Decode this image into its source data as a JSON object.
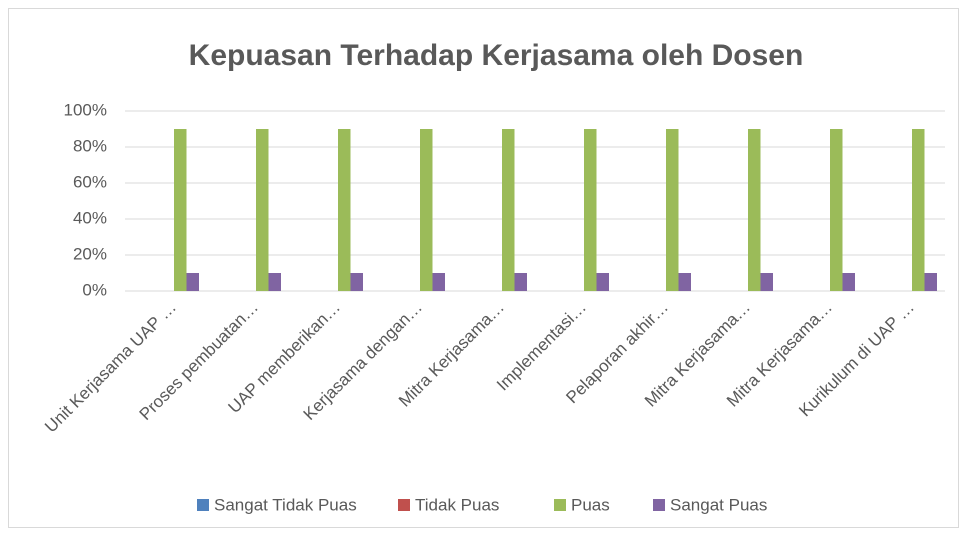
{
  "chart_data": {
    "type": "bar",
    "title": "Kepuasan Terhadap Kerjasama oleh Dosen",
    "categories": [
      "Unit Kerjasama UAP …",
      "Proses pembuatan…",
      "UAP memberikan…",
      "Kerjasama dengan…",
      "Mitra Kerjasama…",
      "Implementasi…",
      "Pelaporan akhir…",
      "Mitra Kerjasama…",
      "Mitra Kerjasama…",
      "Kurikulum di UAP …"
    ],
    "series": [
      {
        "name": "Sangat Tidak Puas",
        "color": "#4f81bd",
        "values": [
          0,
          0,
          0,
          0,
          0,
          0,
          0,
          0,
          0,
          0
        ]
      },
      {
        "name": "Tidak Puas",
        "color": "#c0504d",
        "values": [
          0,
          0,
          0,
          0,
          0,
          0,
          0,
          0,
          0,
          0
        ]
      },
      {
        "name": "Puas",
        "color": "#9bbb59",
        "values": [
          90,
          90,
          90,
          90,
          90,
          90,
          90,
          90,
          90,
          90
        ]
      },
      {
        "name": "Sangat Puas",
        "color": "#8064a2",
        "values": [
          10,
          10,
          10,
          10,
          10,
          10,
          10,
          10,
          10,
          10
        ]
      }
    ],
    "ylim": [
      0,
      100
    ],
    "yticks": [
      {
        "value": 0,
        "label": "0%"
      },
      {
        "value": 20,
        "label": "20%"
      },
      {
        "value": 40,
        "label": "40%"
      },
      {
        "value": 60,
        "label": "60%"
      },
      {
        "value": 80,
        "label": "80%"
      },
      {
        "value": 100,
        "label": "100%"
      }
    ],
    "grid": true,
    "legend": "bottom"
  }
}
